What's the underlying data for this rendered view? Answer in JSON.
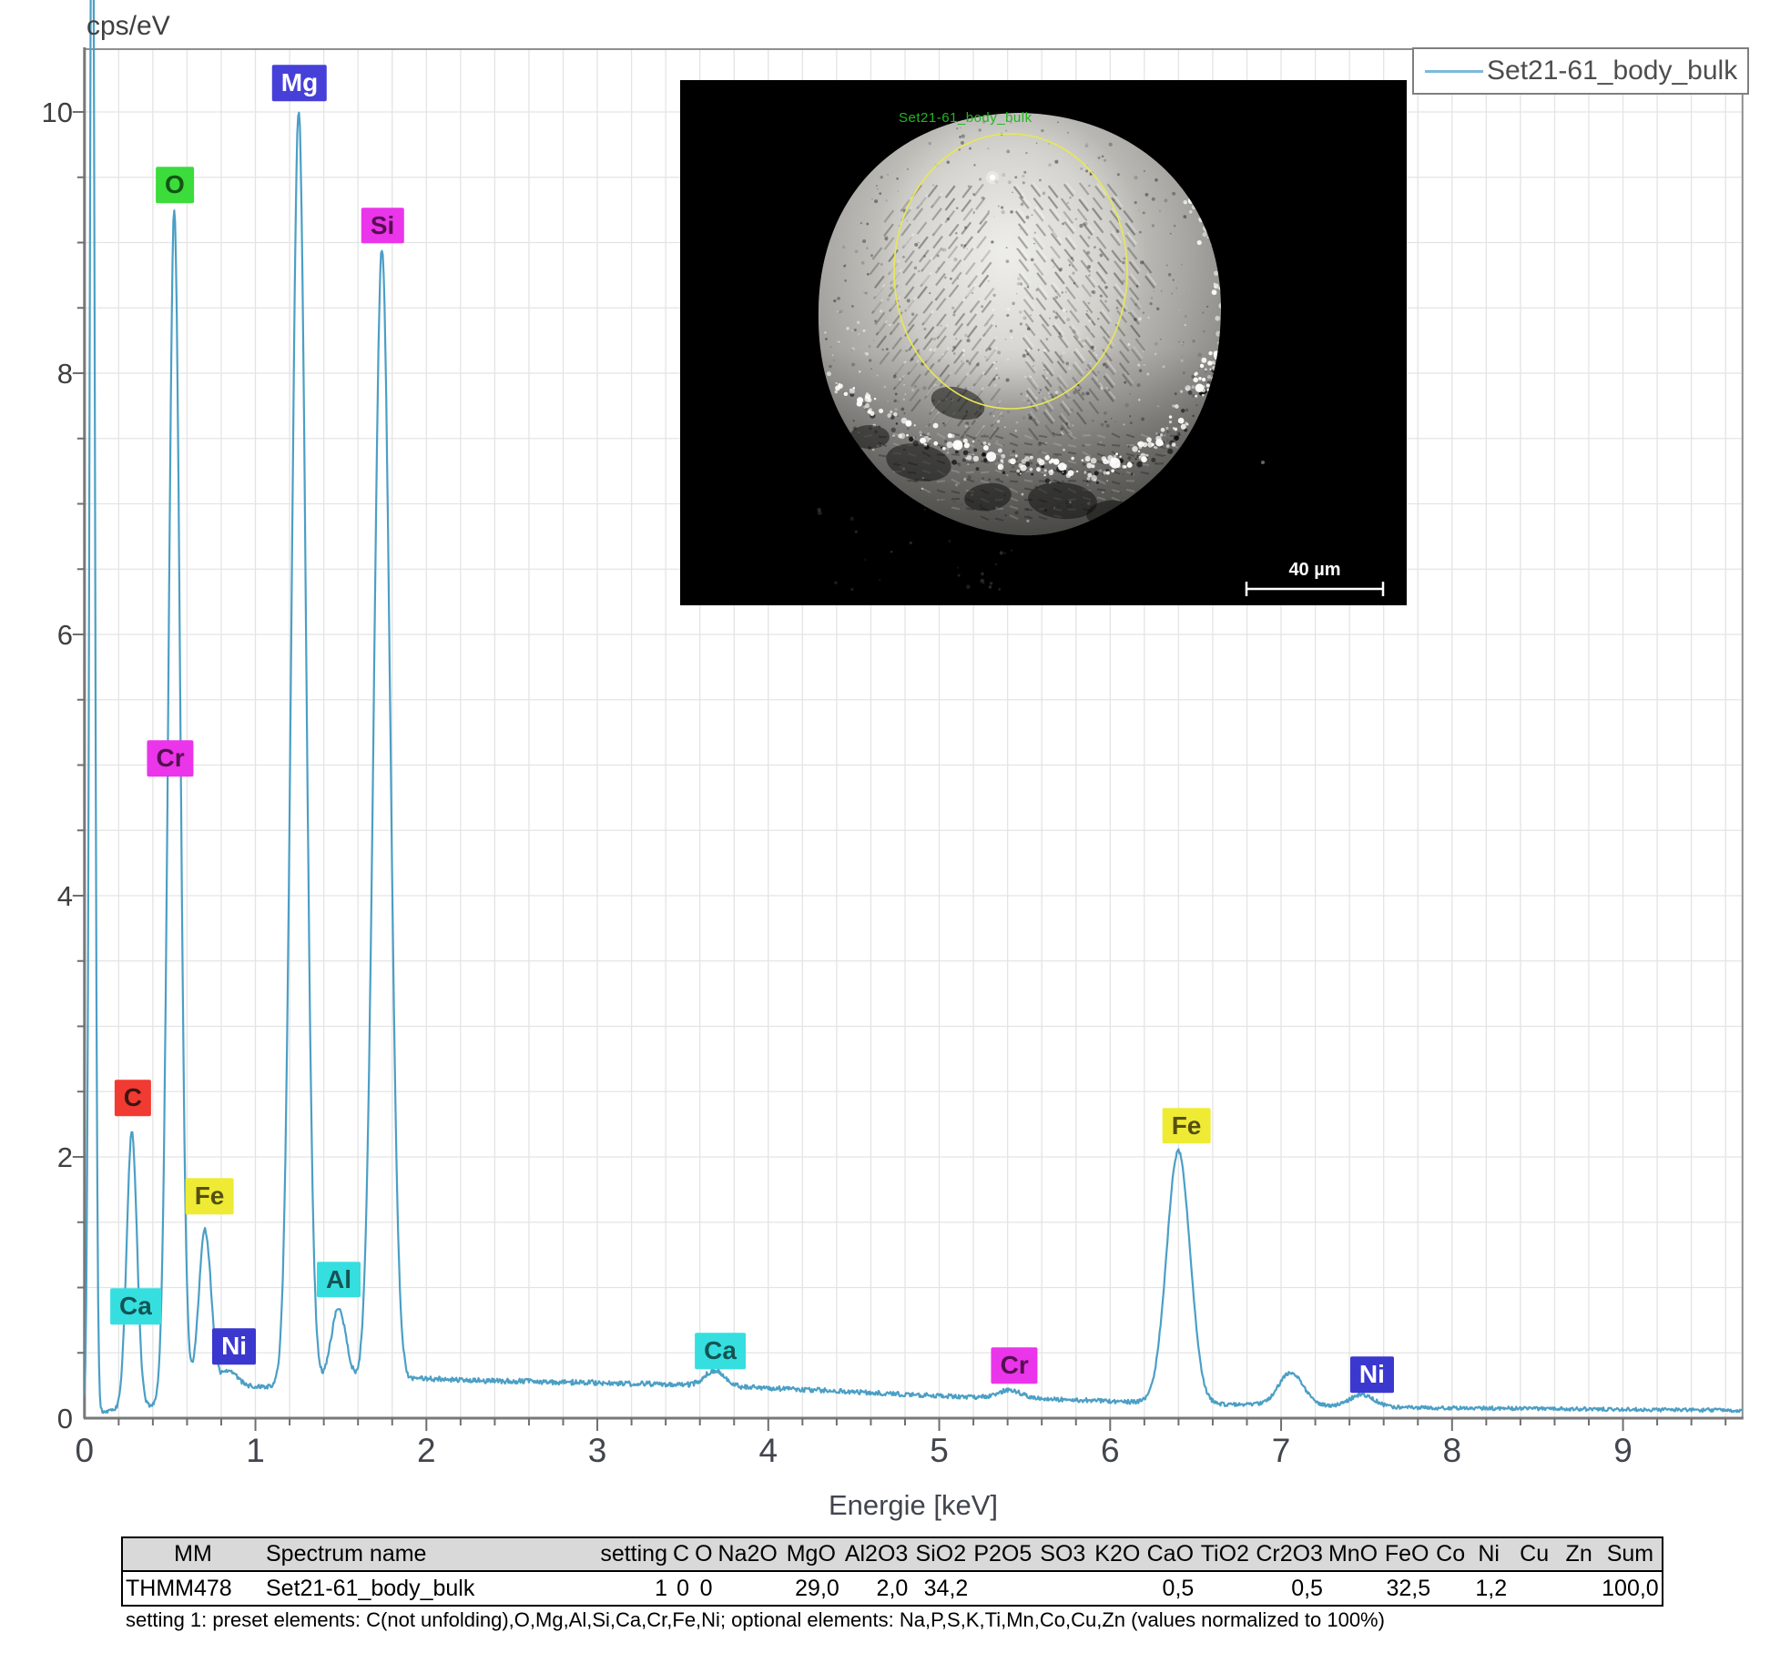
{
  "chart_data": {
    "type": "line",
    "title": "",
    "ylabel": "cps/eV",
    "xlabel": "Energie [keV]",
    "grid": true,
    "legend_position": "top-right",
    "x_axis": {
      "min": 0,
      "max": 9.7,
      "tick_values": [
        0,
        1,
        2,
        3,
        4,
        5,
        6,
        7,
        8,
        9
      ],
      "tick_labels": [
        "0",
        "1",
        "2",
        "3",
        "4",
        "5",
        "6",
        "7",
        "8",
        "9"
      ],
      "minor_step": 0.2,
      "grid_step": 0.2
    },
    "y_axis": {
      "min": 0,
      "max": 10.48,
      "tick_values": [
        0,
        2,
        4,
        6,
        8,
        10
      ],
      "tick_labels": [
        "0",
        "2",
        "4",
        "6",
        "8",
        "10"
      ],
      "minor_step": 0.5,
      "grid_step": 0.5
    },
    "series": [
      {
        "name": "Set21-61_body_bulk",
        "color": "#4b9fc5",
        "baseline_points": [
          [
            0,
            0.02
          ],
          [
            0.12,
            0.05
          ],
          [
            0.3,
            0.08
          ],
          [
            0.42,
            0.1
          ],
          [
            0.55,
            0.18
          ],
          [
            0.8,
            0.26
          ],
          [
            1.05,
            0.24
          ],
          [
            1.5,
            0.27
          ],
          [
            2.0,
            0.3
          ],
          [
            2.6,
            0.28
          ],
          [
            3.4,
            0.26
          ],
          [
            4.2,
            0.22
          ],
          [
            5.0,
            0.17
          ],
          [
            5.8,
            0.14
          ],
          [
            6.4,
            0.11
          ],
          [
            7.0,
            0.1
          ],
          [
            7.8,
            0.08
          ],
          [
            8.8,
            0.07
          ],
          [
            9.7,
            0.06
          ]
        ],
        "peaks": [
          {
            "element": "noise",
            "center_keV": 0.045,
            "amplitude": 13.0,
            "sigma": 0.015
          },
          {
            "element": "C",
            "center_keV": 0.277,
            "amplitude": 2.12,
            "sigma": 0.03
          },
          {
            "element": "O",
            "center_keV": 0.525,
            "amplitude": 9.1,
            "sigma": 0.034
          },
          {
            "element": "Fe L",
            "center_keV": 0.705,
            "amplitude": 1.21,
            "sigma": 0.036
          },
          {
            "element": "Ni L",
            "center_keV": 0.851,
            "amplitude": 0.11,
            "sigma": 0.04
          },
          {
            "element": "Mg",
            "center_keV": 1.253,
            "amplitude": 9.75,
            "sigma": 0.042
          },
          {
            "element": "Al",
            "center_keV": 1.486,
            "amplitude": 0.57,
            "sigma": 0.044
          },
          {
            "element": "Si",
            "center_keV": 1.74,
            "amplitude": 8.67,
            "sigma": 0.047
          },
          {
            "element": "Ca",
            "center_keV": 3.69,
            "amplitude": 0.12,
            "sigma": 0.06
          },
          {
            "element": "Cr",
            "center_keV": 5.412,
            "amplitude": 0.06,
            "sigma": 0.065
          },
          {
            "element": "Fe Ka",
            "center_keV": 6.399,
            "amplitude": 1.94,
            "sigma": 0.068
          },
          {
            "element": "Fe Kb",
            "center_keV": 7.058,
            "amplitude": 0.25,
            "sigma": 0.072
          },
          {
            "element": "Ni Ka",
            "center_keV": 7.472,
            "amplitude": 0.09,
            "sigma": 0.072
          }
        ]
      }
    ],
    "element_markers": [
      {
        "label": "C",
        "x": 0.283,
        "y": 2.45,
        "bg": "#f13a31",
        "fg": "#3c1512"
      },
      {
        "label": "Ca",
        "x": 0.299,
        "y": 0.857,
        "bg": "#35dfdf",
        "fg": "#155454"
      },
      {
        "label": "O",
        "x": 0.528,
        "y": 9.44,
        "bg": "#3bdc3b",
        "fg": "#135413"
      },
      {
        "label": "Cr",
        "x": 0.502,
        "y": 5.05,
        "bg": "#ea35ea",
        "fg": "#54104f"
      },
      {
        "label": "Fe",
        "x": 0.731,
        "y": 1.7,
        "bg": "#efeb35",
        "fg": "#555010"
      },
      {
        "label": "Ni",
        "x": 0.875,
        "y": 0.55,
        "bg": "#3b38cf",
        "fg": "#ffffff"
      },
      {
        "label": "Mg",
        "x": 1.258,
        "y": 10.22,
        "bg": "#4640d8",
        "fg": "#ffffff"
      },
      {
        "label": "Al",
        "x": 1.487,
        "y": 1.06,
        "bg": "#35dfdf",
        "fg": "#155454"
      },
      {
        "label": "Si",
        "x": 1.743,
        "y": 9.13,
        "bg": "#ea35ea",
        "fg": "#54104f"
      },
      {
        "label": "Ca",
        "x": 3.719,
        "y": 0.516,
        "bg": "#35dfdf",
        "fg": "#155454"
      },
      {
        "label": "Cr",
        "x": 5.44,
        "y": 0.404,
        "bg": "#ea35ea",
        "fg": "#54104f"
      },
      {
        "label": "Fe",
        "x": 6.446,
        "y": 2.24,
        "bg": "#efeb35",
        "fg": "#555010"
      },
      {
        "label": "Ni",
        "x": 7.532,
        "y": 0.334,
        "bg": "#3b38cf",
        "fg": "#ffffff"
      }
    ]
  },
  "legend": {
    "label": "Set21-61_body_bulk",
    "line_color": "#7db9da"
  },
  "inset": {
    "title": "Set21-61_body_bulk",
    "title_color": "#20b820",
    "scale_bar_label": "40 µm",
    "circle_color": "#e8e855"
  },
  "table": {
    "headers": [
      "MM",
      "Spectrum name",
      "setting",
      "C",
      "O",
      "Na2O",
      "MgO",
      "Al2O3",
      "SiO2",
      "P2O5",
      "SO3",
      "K2O",
      "CaO",
      "TiO2",
      "Cr2O3",
      "MnO",
      "FeO",
      "Co",
      "Ni",
      "Cu",
      "Zn",
      "Sum"
    ],
    "rows": [
      [
        "THMM478",
        "Set21-61_body_bulk",
        "1",
        "0",
        "0",
        "",
        "29,0",
        "2,0",
        "34,2",
        "",
        "",
        "",
        "0,5",
        "",
        "0,5",
        "",
        "32,5",
        "",
        "1,2",
        "",
        "",
        "100,0"
      ]
    ]
  },
  "footnote": "setting 1: preset elements: C(not unfolding),O,Mg,Al,Si,Ca,Cr,Fe,Ni; optional elements: Na,P,S,K,Ti,Mn,Co,Cu,Zn (values normalized to 100%)"
}
